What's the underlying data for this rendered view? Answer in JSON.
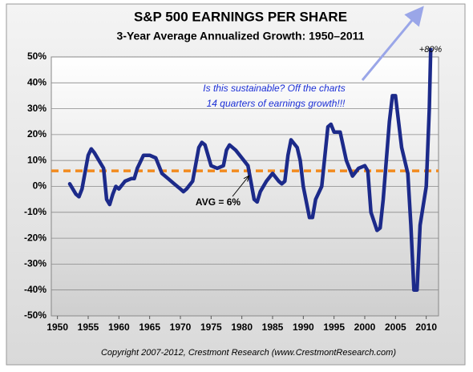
{
  "chart_data": {
    "type": "line",
    "title": "S&P 500 EARNINGS PER SHARE",
    "subtitle": "3-Year Average Annualized Growth: 1950–2011",
    "footer": "Copyright 2007-2012, Crestmont Research (www.CrestmontResearch.com)",
    "annotations": [
      "AVG = 6%",
      "Is this sustainable? Off the charts",
      "14 quarters of earnings growth!!!",
      "+80%"
    ],
    "average": 6,
    "average_color": "#f28a1e",
    "color": "#1c2a8a",
    "x": [
      1952,
      1953,
      1953.5,
      1954,
      1955,
      1955.5,
      1956,
      1957,
      1957.5,
      1958,
      1958.5,
      1959,
      1959.5,
      1960,
      1961,
      1962,
      1962.5,
      1963,
      1964,
      1965,
      1966,
      1966.5,
      1967,
      1968,
      1969,
      1970,
      1970.5,
      1971,
      1972,
      1973,
      1973.5,
      1974,
      1975,
      1976,
      1977,
      1977.5,
      1978,
      1979,
      1980,
      1981,
      1982,
      1982.5,
      1983,
      1984,
      1985,
      1986,
      1986.5,
      1987,
      1987.5,
      1988,
      1989,
      1989.5,
      1990,
      1991,
      1991.5,
      1992,
      1993,
      1994,
      1994.5,
      1995,
      1996,
      1997,
      1998,
      1999,
      2000,
      2000.5,
      2001,
      2002,
      2002.5,
      2003,
      2004,
      2004.5,
      2005,
      2006,
      2007,
      2007.5,
      2008,
      2008.5,
      2009,
      2010,
      2010.5,
      2011
    ],
    "values": [
      1,
      -3,
      -4,
      -1,
      12,
      14.5,
      13,
      9,
      7,
      -5,
      -7,
      -3,
      0,
      -1,
      2,
      3,
      3,
      7,
      12,
      12,
      11,
      8,
      5,
      3,
      1,
      -1,
      -2,
      -1,
      2,
      15,
      17,
      16,
      8,
      7,
      8,
      14,
      16,
      14,
      11,
      8,
      -5,
      -6,
      -2,
      2,
      5,
      2,
      1,
      2,
      12,
      18,
      15,
      10,
      0,
      -12,
      -12,
      -5,
      0,
      23,
      24,
      21,
      21,
      10,
      4,
      7,
      8,
      6,
      -10,
      -17,
      -16,
      -5,
      25,
      35,
      35,
      15,
      5,
      -15,
      -40,
      -40,
      -15,
      0,
      30,
      80
    ],
    "xlim": [
      1949,
      2012
    ],
    "xticks": [
      1950,
      1955,
      1960,
      1965,
      1970,
      1975,
      1980,
      1985,
      1990,
      1995,
      2000,
      2005,
      2010
    ],
    "ylim": [
      -50,
      50
    ],
    "yticks": [
      {
        "value": -50,
        "label": "-50%"
      },
      {
        "value": -40,
        "label": "-40%"
      },
      {
        "value": -30,
        "label": "-30%"
      },
      {
        "value": -20,
        "label": "-20%"
      },
      {
        "value": -10,
        "label": "-10%"
      },
      {
        "value": 0,
        "label": "0%"
      },
      {
        "value": 10,
        "label": "10%"
      },
      {
        "value": 20,
        "label": "20%"
      },
      {
        "value": 30,
        "label": "30%"
      },
      {
        "value": 40,
        "label": "40%"
      },
      {
        "value": 50,
        "label": "50%"
      }
    ],
    "grid": true
  }
}
